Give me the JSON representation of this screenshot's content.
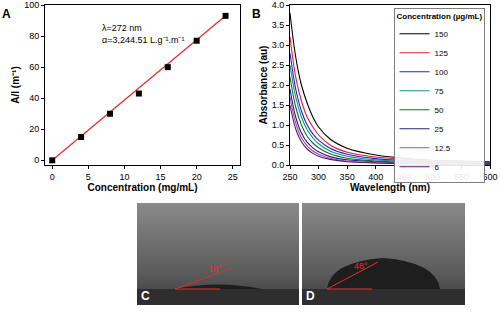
{
  "chart_data": [
    {
      "type": "scatter",
      "panel": "A",
      "x_label": "Concentration (mg/mL)",
      "y_label": "A/l (m⁻¹)",
      "annotations": [
        "λ=272 nm",
        "α=3,244.51 L.g⁻¹.m⁻¹"
      ],
      "x": [
        0,
        4,
        8,
        12,
        16,
        20,
        24
      ],
      "series": [
        {
          "type": "scatter",
          "marker": "square",
          "color": "#000000",
          "values": [
            0,
            15,
            30,
            43,
            60,
            77,
            93
          ]
        },
        {
          "type": "line",
          "line_style": "solid",
          "color": "#e03030",
          "values": [
            0,
            15.5,
            31,
            46.5,
            62,
            77.5,
            93
          ]
        }
      ],
      "xlim": [
        -1,
        26
      ],
      "xticks": [
        0,
        5,
        10,
        15,
        20,
        25
      ],
      "ylim": [
        -3,
        100
      ],
      "yticks": [
        0,
        20,
        40,
        60,
        80,
        100
      ],
      "grid": false
    },
    {
      "type": "line",
      "panel": "B",
      "x_label": "Wavelength (nm)",
      "y_label": "Absorbance (au)",
      "legend_title": "Concentration (µg/mL)",
      "legend": "top right",
      "x": [
        250,
        260,
        270,
        280,
        290,
        300,
        320,
        350,
        400,
        450,
        500,
        550,
        600
      ],
      "series": [
        {
          "name": "150",
          "color": "#000000",
          "values": [
            3.8,
            2.7,
            2.0,
            1.55,
            1.2,
            0.95,
            0.65,
            0.42,
            0.25,
            0.17,
            0.12,
            0.1,
            0.08
          ]
        },
        {
          "name": "125",
          "color": "#e02020",
          "values": [
            3.2,
            2.2,
            1.6,
            1.2,
            0.95,
            0.75,
            0.5,
            0.32,
            0.2,
            0.14,
            0.1,
            0.08,
            0.07
          ]
        },
        {
          "name": "100",
          "color": "#2020e0",
          "values": [
            2.8,
            1.9,
            1.35,
            1.0,
            0.78,
            0.62,
            0.42,
            0.27,
            0.16,
            0.11,
            0.08,
            0.07,
            0.06
          ]
        },
        {
          "name": "75",
          "color": "#1a8a8a",
          "values": [
            2.5,
            1.7,
            1.2,
            0.88,
            0.68,
            0.53,
            0.35,
            0.22,
            0.13,
            0.09,
            0.07,
            0.06,
            0.05
          ]
        },
        {
          "name": "50",
          "color": "#1a6a2a",
          "values": [
            2.2,
            1.45,
            1.0,
            0.72,
            0.55,
            0.43,
            0.28,
            0.17,
            0.1,
            0.07,
            0.05,
            0.04,
            0.04
          ]
        },
        {
          "name": "25",
          "color": "#1a2a7a",
          "values": [
            1.9,
            1.2,
            0.8,
            0.57,
            0.43,
            0.33,
            0.21,
            0.13,
            0.08,
            0.05,
            0.04,
            0.03,
            0.03
          ]
        },
        {
          "name": "12.5",
          "color": "#b040c0",
          "values": [
            1.7,
            1.05,
            0.68,
            0.48,
            0.35,
            0.27,
            0.17,
            0.1,
            0.06,
            0.04,
            0.03,
            0.03,
            0.02
          ]
        },
        {
          "name": "6",
          "color": "#5a1a6a",
          "values": [
            1.5,
            0.9,
            0.58,
            0.4,
            0.29,
            0.22,
            0.14,
            0.08,
            0.05,
            0.03,
            0.02,
            0.02,
            0.02
          ]
        }
      ],
      "xlim": [
        250,
        600
      ],
      "xticks": [
        250,
        300,
        350,
        400,
        450,
        500,
        550,
        600
      ],
      "ylim": [
        0,
        4
      ],
      "yticks": [
        {
          "value": 0,
          "label": "0.0"
        },
        0.5,
        {
          "value": 1,
          "label": "1.0"
        },
        1.5,
        {
          "value": 2,
          "label": "2.0"
        },
        2.5,
        {
          "value": 3,
          "label": "3.0"
        },
        3.5,
        {
          "value": 4,
          "label": "4.0"
        }
      ],
      "grid": false
    }
  ],
  "images": [
    {
      "panel": "C",
      "angle_label": "18°"
    },
    {
      "panel": "D",
      "angle_label": "48°"
    }
  ]
}
